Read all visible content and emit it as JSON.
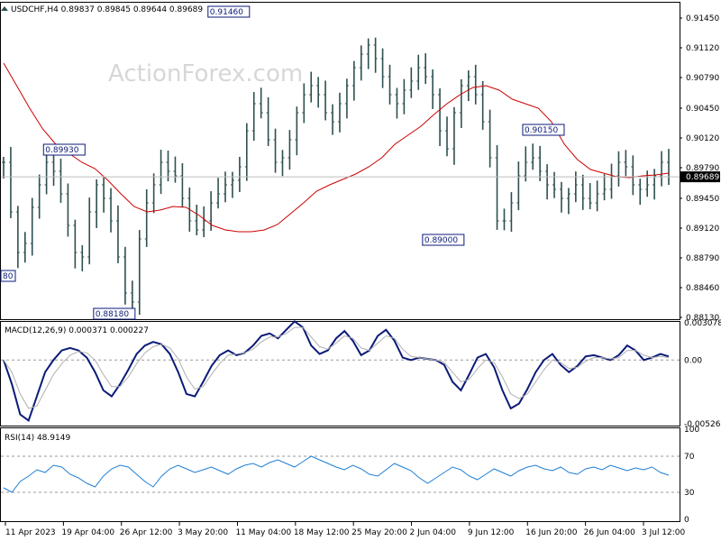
{
  "header": {
    "symbol_info": "USDCHF,H4  0.89837 0.89845 0.89644 0.89689"
  },
  "watermark": "ActionForex.com",
  "colors": {
    "price_bars": "#2f4f4f",
    "moving_average": "#cc0000",
    "macd_main": "#0b1a78",
    "macd_signal": "#b0b0b0",
    "rsi": "#1e7fd6",
    "label_border": "#0b1a78",
    "current_price_line": "#bdbdbd"
  },
  "chart_data": [
    {
      "panel": "price",
      "type": "ohlc",
      "ylim": [
        0.8813,
        0.916
      ],
      "y_ticks": [
        "0.91450",
        "0.91120",
        "0.90790",
        "0.90450",
        "0.90120",
        "0.89790",
        "0.89450",
        "0.89120",
        "0.88790",
        "0.88460",
        "0.88130"
      ],
      "current_price": "0.89689",
      "x_labels": [
        "11 Apr 2023",
        "19 Apr 04:00",
        "26 Apr 12:00",
        "3 May 20:00",
        "11 May 04:00",
        "18 May 12:00",
        "25 May 20:00",
        "2 Jun 04:00",
        "9 Jun 12:00",
        "16 Jun 20:00",
        "26 Jun 04:00",
        "3 Jul 12:00"
      ],
      "series": [
        {
          "close": [
            0.8985,
            0.893,
            0.8885,
            0.8895,
            0.8935,
            0.896,
            0.8985,
            0.8975,
            0.895,
            0.8915,
            0.8885,
            0.888,
            0.893,
            0.896,
            0.8945,
            0.892,
            0.888,
            0.884,
            0.883,
            0.89,
            0.894,
            0.896,
            0.8985,
            0.8975,
            0.897,
            0.8945,
            0.892,
            0.891,
            0.892,
            0.894,
            0.895,
            0.896,
            0.8965,
            0.898,
            0.902,
            0.905,
            0.904,
            0.901,
            0.8985,
            0.899,
            0.901,
            0.904,
            0.906,
            0.907,
            0.906,
            0.904,
            0.903,
            0.905,
            0.907,
            0.909,
            0.9105,
            0.9115,
            0.91,
            0.908,
            0.906,
            0.905,
            0.9065,
            0.9075,
            0.909,
            0.908,
            0.906,
            0.902,
            0.9,
            0.904,
            0.907,
            0.908,
            0.906,
            0.903,
            0.899,
            0.892,
            0.892,
            0.894,
            0.897,
            0.8985,
            0.899,
            0.8975,
            0.896,
            0.8955,
            0.8945,
            0.895,
            0.896,
            0.8945,
            0.894,
            0.895,
            0.8955,
            0.897,
            0.8985,
            0.898,
            0.896,
            0.8955,
            0.896,
            0.897,
            0.8985,
            0.8969
          ]
        },
        {
          "name": "MA",
          "values": [
            0.9095,
            0.907,
            0.9045,
            0.9022,
            0.9005,
            0.8995,
            0.8985,
            0.8978,
            0.8965,
            0.895,
            0.8936,
            0.893,
            0.8932,
            0.8936,
            0.8935,
            0.8926,
            0.8915,
            0.891,
            0.8908,
            0.8908,
            0.891,
            0.8916,
            0.8928,
            0.894,
            0.8953,
            0.896,
            0.8966,
            0.8972,
            0.898,
            0.899,
            0.9005,
            0.9015,
            0.9025,
            0.9038,
            0.905,
            0.906,
            0.9068,
            0.907,
            0.9065,
            0.9055,
            0.905,
            0.9045,
            0.903,
            0.9005,
            0.8988,
            0.8977,
            0.8973,
            0.8969,
            0.8968,
            0.897,
            0.8971,
            0.8973
          ]
        }
      ],
      "annotations": [
        {
          "label": "0.91460",
          "x_index": 34,
          "value": 0.9146
        },
        {
          "label": "0.89930",
          "x_index": 11,
          "value": 0.8993
        },
        {
          "label": "0.88180",
          "x_index": 18,
          "value": 0.8818
        },
        {
          "label": "0.89000",
          "x_index": 64,
          "value": 0.89
        },
        {
          "label": "0.90150",
          "x_index": 78,
          "value": 0.9015
        },
        {
          "label": "80",
          "x_index": 0,
          "value": 0.886
        }
      ]
    },
    {
      "panel": "macd",
      "type": "line",
      "title": "MACD(12,26,9) 0.000371 0.000227",
      "ylim": [
        -0.005268,
        0.003078
      ],
      "y_ticks": [
        "0.003078",
        "0.00",
        "-0.005268"
      ],
      "series": [
        {
          "name": "main",
          "values": [
            0.0,
            -0.002,
            -0.0045,
            -0.005,
            -0.003,
            -0.001,
            0.0,
            0.0008,
            0.001,
            0.0008,
            0.0002,
            -0.001,
            -0.0025,
            -0.003,
            -0.002,
            -0.0008,
            0.0005,
            0.0012,
            0.0015,
            0.0013,
            0.0005,
            -0.001,
            -0.0028,
            -0.003,
            -0.0018,
            -0.0005,
            0.0004,
            0.0008,
            0.0004,
            0.0006,
            0.0012,
            0.002,
            0.0022,
            0.0018,
            0.0025,
            0.0032,
            0.0027,
            0.0012,
            0.0005,
            0.0008,
            0.0018,
            0.0024,
            0.0016,
            0.0004,
            0.0008,
            0.002,
            0.0025,
            0.0016,
            0.0002,
            0.0,
            0.0002,
            0.0001,
            0.0,
            -0.0004,
            -0.0018,
            -0.0025,
            -0.0012,
            0.0002,
            0.0005,
            -0.0006,
            -0.0025,
            -0.004,
            -0.0036,
            -0.0024,
            -0.001,
            0.0,
            0.0005,
            -0.0004,
            -0.001,
            -0.0005,
            0.0003,
            0.0004,
            0.0002,
            0.0,
            0.0004,
            0.0012,
            0.0008,
            0.0,
            0.0002,
            0.0005,
            0.0003
          ]
        },
        {
          "name": "signal",
          "values": [
            0.0,
            -0.001,
            -0.0028,
            -0.004,
            -0.0038,
            -0.0025,
            -0.0012,
            -0.0003,
            0.0004,
            0.0007,
            0.0006,
            0.0,
            -0.0012,
            -0.0022,
            -0.0022,
            -0.0014,
            -0.0003,
            0.0006,
            0.0011,
            0.0013,
            0.001,
            0.0001,
            -0.0014,
            -0.0024,
            -0.0022,
            -0.0012,
            -0.0003,
            0.0004,
            0.0005,
            0.0006,
            0.0009,
            0.0015,
            0.0019,
            0.0019,
            0.0022,
            0.0027,
            0.0027,
            0.0019,
            0.0011,
            0.0009,
            0.0014,
            0.002,
            0.0018,
            0.001,
            0.0008,
            0.0014,
            0.002,
            0.0018,
            0.0009,
            0.0003,
            0.0002,
            0.0001,
            0.0,
            -0.0002,
            -0.001,
            -0.0018,
            -0.0016,
            -0.0007,
            0.0,
            -0.0002,
            -0.0014,
            -0.0028,
            -0.0032,
            -0.0028,
            -0.0018,
            -0.0008,
            0.0,
            -0.0002,
            -0.0007,
            -0.0006,
            -0.0001,
            0.0002,
            0.0002,
            0.0001,
            0.0002,
            0.0008,
            0.0008,
            0.0004,
            0.0002,
            0.0003,
            0.0002
          ]
        }
      ]
    },
    {
      "panel": "rsi",
      "type": "line",
      "title": "RSI(14) 48.9149",
      "ylim": [
        0,
        100
      ],
      "y_ticks": [
        "100",
        "70",
        "30",
        "0"
      ],
      "levels": [
        70,
        30
      ],
      "series": [
        {
          "name": "RSI",
          "values": [
            35,
            30,
            42,
            48,
            55,
            52,
            60,
            58,
            50,
            46,
            40,
            36,
            48,
            56,
            60,
            58,
            50,
            42,
            36,
            48,
            56,
            60,
            56,
            52,
            55,
            58,
            54,
            50,
            56,
            60,
            62,
            58,
            63,
            66,
            62,
            58,
            64,
            70,
            66,
            62,
            58,
            55,
            60,
            56,
            50,
            48,
            55,
            62,
            58,
            54,
            46,
            40,
            46,
            52,
            58,
            55,
            48,
            44,
            50,
            56,
            52,
            48,
            54,
            58,
            60,
            56,
            54,
            58,
            52,
            50,
            56,
            58,
            55,
            60,
            57,
            54,
            57,
            55,
            58,
            52,
            49
          ]
        }
      ]
    }
  ]
}
